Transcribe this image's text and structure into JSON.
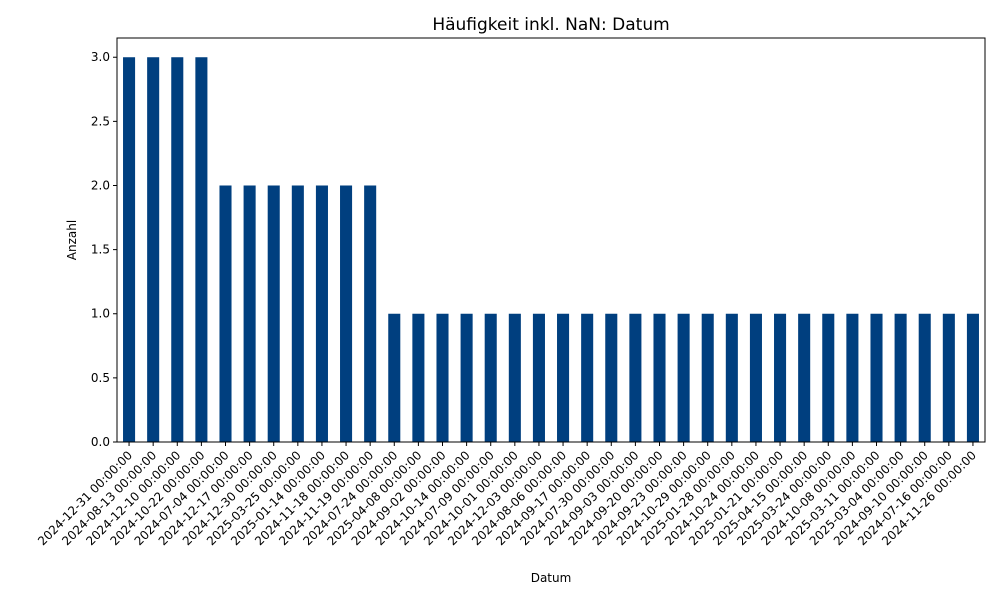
{
  "chart_data": {
    "type": "bar",
    "title": "Häufigkeit inkl. NaN: Datum",
    "xlabel": "Datum",
    "ylabel": "Anzahl",
    "ylim": [
      0,
      3.15
    ],
    "yticks": [
      "0.0",
      "0.5",
      "1.0",
      "1.5",
      "2.0",
      "2.5",
      "3.0"
    ],
    "grid": false,
    "bar_color": "#003f7f",
    "categories": [
      "2024-12-31 00:00:00",
      "2024-08-13 00:00:00",
      "2024-12-10 00:00:00",
      "2024-10-22 00:00:00",
      "2024-07-04 00:00:00",
      "2024-12-17 00:00:00",
      "2024-12-30 00:00:00",
      "2025-03-25 00:00:00",
      "2025-01-14 00:00:00",
      "2024-11-18 00:00:00",
      "2024-11-19 00:00:00",
      "2024-07-24 00:00:00",
      "2025-04-08 00:00:00",
      "2024-09-02 00:00:00",
      "2024-10-14 00:00:00",
      "2024-07-09 00:00:00",
      "2024-10-01 00:00:00",
      "2024-12-03 00:00:00",
      "2024-08-06 00:00:00",
      "2024-09-17 00:00:00",
      "2024-07-30 00:00:00",
      "2024-09-03 00:00:00",
      "2024-09-20 00:00:00",
      "2024-09-23 00:00:00",
      "2024-10-29 00:00:00",
      "2025-01-28 00:00:00",
      "2024-10-24 00:00:00",
      "2025-01-21 00:00:00",
      "2025-04-15 00:00:00",
      "2025-03-24 00:00:00",
      "2024-10-08 00:00:00",
      "2025-03-11 00:00:00",
      "2025-03-04 00:00:00",
      "2024-09-10 00:00:00",
      "2024-07-16 00:00:00",
      "2024-11-26 00:00:00"
    ],
    "values": [
      3,
      3,
      3,
      3,
      2,
      2,
      2,
      2,
      2,
      2,
      2,
      1,
      1,
      1,
      1,
      1,
      1,
      1,
      1,
      1,
      1,
      1,
      1,
      1,
      1,
      1,
      1,
      1,
      1,
      1,
      1,
      1,
      1,
      1,
      1,
      1
    ]
  }
}
